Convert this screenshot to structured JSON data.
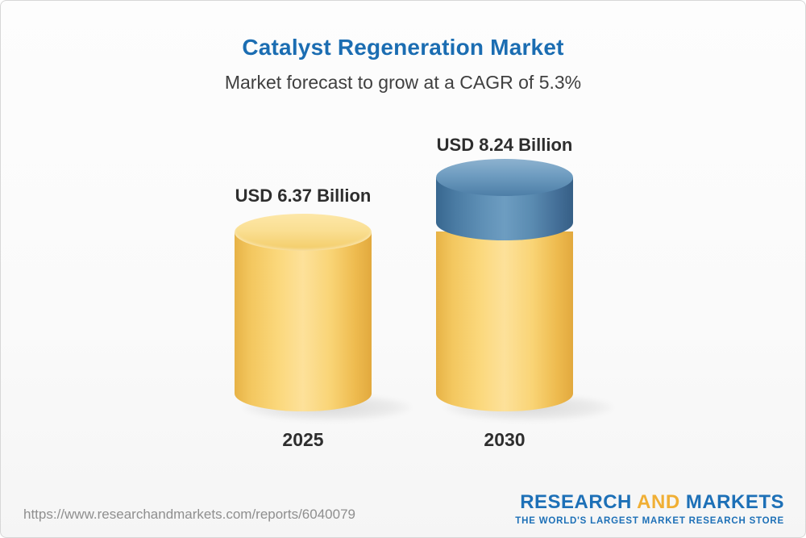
{
  "header": {
    "title": "Catalyst Regeneration Market",
    "subtitle": "Market forecast to grow at a CAGR of 5.3%"
  },
  "chart_data": {
    "type": "bar",
    "title": "Catalyst Regeneration Market",
    "subtitle": "Market forecast to grow at a CAGR of 5.3%",
    "categories": [
      "2025",
      "2030"
    ],
    "values": [
      6.37,
      8.24
    ],
    "unit": "USD Billion",
    "cagr_percent": 5.3,
    "bars": [
      {
        "category": "2025",
        "value": 6.37,
        "value_label": "USD 6.37 Billion",
        "bar_color": "#F8CF6D"
      },
      {
        "category": "2030",
        "value": 8.24,
        "value_label": "USD 8.24 Billion",
        "bar_color": "#F8CF6D",
        "top_segment_color": "#4E81AC"
      }
    ],
    "legend": "none",
    "grid": "off",
    "bar_style": "3d-cylinder"
  },
  "footer": {
    "url": "https://www.researchandmarkets.com/reports/6040079",
    "logo": {
      "word1": "RESEARCH",
      "word2": "AND",
      "word3": "MARKETS",
      "tagline": "THE WORLD'S LARGEST MARKET RESEARCH STORE"
    }
  }
}
